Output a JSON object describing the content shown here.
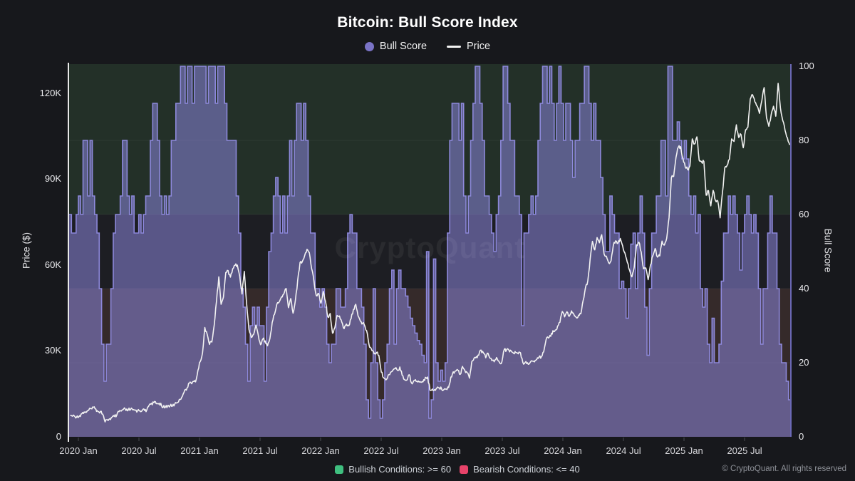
{
  "title": "Bitcoin: Bull Score Index",
  "watermark": "CryptoQuant",
  "legend": {
    "bull_score_label": "Bull Score",
    "price_label": "Price"
  },
  "axes": {
    "price_axis_title": "Price ($)",
    "score_axis_title": "Bull Score",
    "price_ticks": [
      {
        "value": 0,
        "label": "0"
      },
      {
        "value": 30,
        "label": "30K"
      },
      {
        "value": 60,
        "label": "60K"
      },
      {
        "value": 90,
        "label": "90K"
      },
      {
        "value": 120,
        "label": "120K"
      }
    ],
    "score_ticks": [
      0,
      20,
      40,
      60,
      80,
      100
    ],
    "x_tick_labels": [
      "2020 Jan",
      "2020 Jul",
      "2021 Jan",
      "2021 Jul",
      "2022 Jan",
      "2022 Jul",
      "2023 Jan",
      "2023 Jul",
      "2024 Jan",
      "2024 Jul",
      "2025 Jan",
      "2025 Jul"
    ]
  },
  "footer": {
    "bullish_label": "Bullish Conditions: >= 60",
    "bearish_label": "Bearish Conditions: <= 40",
    "copyright": "© CryptoQuant. All rights reserved"
  },
  "colors": {
    "background": "#17181c",
    "zone_bullish": "#233028",
    "zone_neutral": "#1d1e23",
    "zone_bearish": "#352a2a",
    "bull_fill": "#8a85da",
    "bull_line": "#918ce2",
    "price_line": "#f2f2f2",
    "left_axis": "#e8e8e8",
    "right_axis": "#6b68b5",
    "legend_dot": "#7a73c6",
    "bullish_swatch": "#3fbf7f",
    "bearish_swatch": "#e8436a",
    "watermark": "rgba(255,255,255,0.06)"
  },
  "chart_data": {
    "type": "mixed",
    "interval": "weekly",
    "x_start": "2019-12",
    "x_end": "2025-11",
    "x_tick_labels": [
      "2020 Jan",
      "2020 Jul",
      "2021 Jan",
      "2021 Jul",
      "2022 Jan",
      "2022 Jul",
      "2023 Jan",
      "2023 Jul",
      "2024 Jan",
      "2024 Jul",
      "2025 Jan",
      "2025 Jul"
    ],
    "y_left": {
      "label": "Price ($)",
      "range_usd": [
        0,
        130000
      ],
      "ticks": [
        "0",
        "30K",
        "60K",
        "90K",
        "120K"
      ]
    },
    "y_right": {
      "label": "Bull Score",
      "range": [
        0,
        100
      ],
      "ticks": [
        0,
        20,
        40,
        60,
        80,
        100
      ]
    },
    "thresholds": {
      "bullish_min": 60,
      "bearish_max": 40
    },
    "legend_position": "top",
    "series": [
      {
        "name": "Bull Score",
        "type": "step-area",
        "axis": "right",
        "unit": "index (0-100)",
        "values_weekly": [
          60,
          55,
          55,
          60,
          65,
          60,
          80,
          80,
          65,
          80,
          65,
          60,
          55,
          40,
          25,
          15,
          25,
          25,
          40,
          55,
          60,
          60,
          65,
          80,
          80,
          65,
          60,
          65,
          55,
          55,
          60,
          55,
          60,
          65,
          65,
          80,
          90,
          90,
          80,
          65,
          60,
          65,
          60,
          65,
          80,
          80,
          90,
          90,
          100,
          100,
          90,
          100,
          100,
          90,
          100,
          100,
          100,
          100,
          100,
          90,
          100,
          100,
          100,
          90,
          100,
          100,
          100,
          90,
          80,
          80,
          80,
          80,
          65,
          55,
          40,
          35,
          25,
          15,
          30,
          35,
          30,
          35,
          30,
          30,
          15,
          35,
          50,
          55,
          65,
          70,
          65,
          55,
          65,
          55,
          65,
          80,
          65,
          80,
          90,
          90,
          80,
          90,
          80,
          65,
          55,
          55,
          40,
          40,
          35,
          40,
          35,
          25,
          20,
          25,
          25,
          40,
          40,
          35,
          35,
          40,
          55,
          60,
          55,
          55,
          40,
          40,
          35,
          25,
          10,
          5,
          20,
          40,
          20,
          10,
          5,
          10,
          20,
          25,
          40,
          45,
          25,
          40,
          45,
          40,
          40,
          38,
          35,
          32,
          30,
          28,
          26,
          25,
          22,
          20,
          50,
          5,
          10,
          48,
          20,
          15,
          18,
          15,
          20,
          55,
          80,
          90,
          90,
          90,
          80,
          90,
          65,
          55,
          65,
          80,
          90,
          100,
          100,
          90,
          80,
          65,
          65,
          60,
          55,
          50,
          60,
          65,
          80,
          100,
          100,
          90,
          80,
          80,
          65,
          65,
          60,
          30,
          55,
          55,
          60,
          65,
          60,
          65,
          80,
          90,
          100,
          100,
          90,
          100,
          90,
          80,
          90,
          100,
          90,
          80,
          90,
          90,
          80,
          70,
          80,
          80,
          90,
          90,
          100,
          100,
          90,
          80,
          90,
          80,
          80,
          70,
          60,
          50,
          50,
          65,
          60,
          55,
          55,
          40,
          42,
          40,
          32,
          40,
          52,
          55,
          40,
          55,
          65,
          55,
          35,
          22,
          40,
          55,
          55,
          65,
          65,
          80,
          80,
          65,
          100,
          100,
          80,
          80,
          85,
          80,
          75,
          80,
          75,
          65,
          60,
          65,
          55,
          60,
          40,
          35,
          40,
          25,
          20,
          32,
          20,
          20,
          25,
          42,
          55,
          55,
          65,
          60,
          65,
          60,
          55,
          45,
          55,
          60,
          65,
          60,
          55,
          60,
          55,
          40,
          25,
          40,
          40,
          55,
          65,
          55,
          55,
          40,
          25,
          20,
          20,
          15,
          10
        ]
      },
      {
        "name": "Price",
        "type": "line",
        "axis": "left",
        "unit": "thousand USD",
        "values_weekly": [
          7.4,
          7.2,
          7.1,
          7.3,
          7.4,
          8.1,
          8.7,
          8.6,
          9.4,
          9.9,
          10.3,
          9.7,
          8.8,
          8.9,
          7.9,
          5.2,
          6.0,
          6.3,
          6.9,
          7.1,
          7.5,
          8.8,
          9.0,
          9.7,
          9.2,
          9.4,
          9.6,
          9.4,
          9.3,
          9.1,
          9.1,
          9.2,
          9.2,
          9.4,
          11.1,
          11.7,
          11.9,
          11.6,
          11.5,
          11.7,
          10.3,
          10.4,
          10.9,
          10.8,
          10.7,
          11.4,
          11.9,
          13.1,
          13.8,
          15.5,
          16.3,
          18.7,
          18.9,
          19.4,
          19.2,
          23.2,
          26.3,
          29.4,
          38.2,
          35.8,
          32.3,
          33.1,
          38.9,
          47.2,
          55.9,
          46.3,
          48.8,
          57.4,
          58.1,
          55.8,
          58.7,
          59.9,
          60.0,
          56.2,
          49.9,
          57.8,
          46.4,
          37.5,
          34.7,
          35.8,
          39.0,
          35.5,
          32.2,
          34.2,
          33.5,
          31.8,
          34.3,
          39.9,
          42.8,
          46.3,
          47.1,
          48.9,
          49.9,
          51.8,
          45.1,
          48.3,
          43.2,
          47.7,
          54.7,
          60.9,
          61.3,
          63.3,
          65.5,
          64.4,
          58.7,
          54.4,
          49.3,
          50.1,
          46.7,
          50.8,
          47.3,
          41.9,
          43.1,
          36.2,
          38.2,
          42.4,
          42.2,
          40.1,
          37.8,
          39.4,
          38.8,
          41.3,
          44.5,
          46.3,
          42.3,
          40.4,
          39.7,
          38.6,
          36.0,
          31.3,
          30.1,
          29.0,
          29.5,
          28.4,
          22.6,
          20.6,
          19.9,
          21.6,
          22.5,
          23.3,
          23.8,
          23.2,
          24.4,
          21.5,
          20.0,
          19.8,
          21.7,
          18.9,
          19.6,
          19.4,
          19.5,
          19.1,
          19.2,
          20.8,
          20.9,
          16.3,
          16.7,
          16.5,
          17.1,
          17.1,
          16.7,
          16.5,
          16.7,
          17.2,
          20.9,
          22.7,
          23.0,
          23.3,
          21.8,
          24.6,
          23.2,
          22.4,
          20.5,
          26.2,
          27.5,
          28.0,
          28.5,
          30.3,
          29.4,
          27.6,
          29.2,
          27.4,
          26.8,
          26.9,
          27.2,
          25.9,
          26.3,
          30.5,
          30.4,
          30.3,
          30.0,
          29.2,
          29.4,
          29.0,
          29.4,
          26.0,
          26.0,
          25.9,
          25.8,
          26.5,
          26.2,
          27.0,
          27.9,
          28.0,
          29.7,
          33.9,
          34.5,
          35.1,
          37.1,
          37.3,
          38.7,
          40.0,
          43.8,
          41.9,
          43.7,
          42.1,
          44.0,
          42.8,
          41.7,
          42.5,
          43.0,
          47.7,
          52.1,
          54.5,
          62.0,
          68.3,
          65.3,
          69.6,
          67.8,
          70.6,
          63.9,
          63.1,
          60.8,
          61.5,
          66.9,
          68.5,
          67.7,
          69.3,
          66.7,
          64.2,
          61.0,
          58.2,
          55.9,
          59.2,
          67.1,
          68.0,
          64.6,
          58.7,
          59.0,
          54.9,
          60.0,
          63.2,
          65.8,
          62.8,
          63.2,
          68.4,
          67.0,
          69.3,
          76.5,
          90.6,
          91.0,
          97.7,
          101.2,
          101.4,
          97.2,
          94.2,
          93.4,
          94.6,
          104.1,
          102.3,
          104.8,
          96.6,
          96.1,
          96.2,
          84.4,
          86.0,
          80.7,
          86.1,
          82.6,
          82.4,
          76.5,
          85.2,
          94.0,
          94.8,
          96.9,
          104.1,
          103.2,
          109.0,
          104.6,
          105.6,
          101.0,
          107.3,
          108.2,
          118.0,
          119.5,
          117.0,
          115.5,
          113.0,
          117.5,
          122.0,
          111.5,
          108.5,
          112.5,
          115.5,
          112.0,
          123.5,
          115.0,
          110.5,
          107.0,
          104.5,
          102.0
        ]
      }
    ]
  }
}
